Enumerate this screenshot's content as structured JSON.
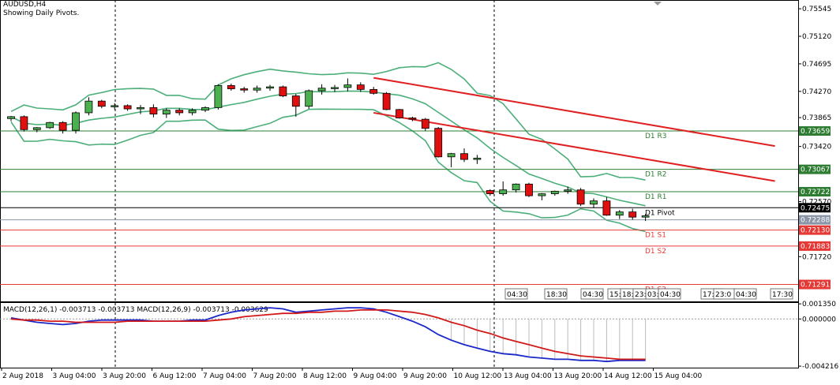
{
  "header": {
    "symbol": "AUDUSD,H4",
    "subtitle": "Showing Daily Pivots."
  },
  "chart_data": {
    "type": "candlestick",
    "symbol": "AUDUSD",
    "timeframe": "H4",
    "ylim": [
      0.7103,
      0.7568
    ],
    "y_ticks": [
      "0.75545",
      "0.75120",
      "0.74695",
      "0.74270",
      "0.73865",
      "0.73420",
      "0.72570",
      "0.71720"
    ],
    "x_ticks": [
      "2 Aug 2018",
      "3 Aug 04:00",
      "3 Aug 20:00",
      "6 Aug 12:00",
      "7 Aug 04:00",
      "7 Aug 20:00",
      "8 Aug 12:00",
      "9 Aug 04:00",
      "9 Aug 20:00",
      "10 Aug 12:00",
      "13 Aug 04:00",
      "13 Aug 20:00",
      "14 Aug 12:00",
      "15 Aug 04:00"
    ],
    "candles": [
      [
        0.7385,
        0.7389,
        0.7381,
        0.7388
      ],
      [
        0.7388,
        0.739,
        0.7365,
        0.7368
      ],
      [
        0.7368,
        0.7372,
        0.7364,
        0.7371
      ],
      [
        0.7371,
        0.738,
        0.7369,
        0.7379
      ],
      [
        0.7379,
        0.7381,
        0.7362,
        0.7367
      ],
      [
        0.7367,
        0.7396,
        0.7362,
        0.7394
      ],
      [
        0.7394,
        0.7418,
        0.739,
        0.7412
      ],
      [
        0.7412,
        0.7414,
        0.7401,
        0.7404
      ],
      [
        0.7404,
        0.7409,
        0.7399,
        0.7405
      ],
      [
        0.7405,
        0.7407,
        0.7397,
        0.74
      ],
      [
        0.74,
        0.7406,
        0.7392,
        0.7402
      ],
      [
        0.7402,
        0.7407,
        0.7387,
        0.7392
      ],
      [
        0.7392,
        0.7401,
        0.7386,
        0.7398
      ],
      [
        0.7398,
        0.7401,
        0.739,
        0.7394
      ],
      [
        0.7394,
        0.7401,
        0.739,
        0.7398
      ],
      [
        0.7398,
        0.7404,
        0.7395,
        0.7402
      ],
      [
        0.7402,
        0.7438,
        0.7399,
        0.7436
      ],
      [
        0.7436,
        0.7439,
        0.7428,
        0.7431
      ],
      [
        0.7431,
        0.7434,
        0.7425,
        0.7429
      ],
      [
        0.7429,
        0.7436,
        0.7425,
        0.7432
      ],
      [
        0.7432,
        0.7437,
        0.7428,
        0.7434
      ],
      [
        0.7434,
        0.7436,
        0.7418,
        0.742
      ],
      [
        0.742,
        0.7423,
        0.7388,
        0.7404
      ],
      [
        0.7404,
        0.743,
        0.74,
        0.7428
      ],
      [
        0.7428,
        0.7438,
        0.7422,
        0.7432
      ],
      [
        0.7432,
        0.7437,
        0.7426,
        0.7433
      ],
      [
        0.7433,
        0.7447,
        0.7427,
        0.7437
      ],
      [
        0.7437,
        0.7441,
        0.7426,
        0.743
      ],
      [
        0.743,
        0.7434,
        0.7422,
        0.7424
      ],
      [
        0.7424,
        0.7426,
        0.7398,
        0.7399
      ],
      [
        0.7399,
        0.74,
        0.7385,
        0.7386
      ],
      [
        0.7386,
        0.7388,
        0.7381,
        0.7384
      ],
      [
        0.7384,
        0.7386,
        0.7366,
        0.737
      ],
      [
        0.737,
        0.7372,
        0.7325,
        0.7326
      ],
      [
        0.7326,
        0.7332,
        0.731,
        0.7331
      ],
      [
        0.7331,
        0.7339,
        0.7318,
        0.7322
      ],
      [
        0.7322,
        0.7329,
        0.7315,
        0.7324
      ],
      [
        0.7274,
        0.7276,
        0.7266,
        0.7269
      ],
      [
        0.7269,
        0.7288,
        0.7266,
        0.7275
      ],
      [
        0.7275,
        0.7285,
        0.7271,
        0.7284
      ],
      [
        0.7284,
        0.7286,
        0.7264,
        0.7266
      ],
      [
        0.7266,
        0.727,
        0.7259,
        0.7269
      ],
      [
        0.7269,
        0.7274,
        0.7266,
        0.7273
      ],
      [
        0.7273,
        0.728,
        0.7269,
        0.7275
      ],
      [
        0.7275,
        0.7278,
        0.725,
        0.7253
      ],
      [
        0.7253,
        0.7262,
        0.7247,
        0.7258
      ],
      [
        0.7258,
        0.7264,
        0.7235,
        0.7236
      ],
      [
        0.7236,
        0.7244,
        0.723,
        0.7241
      ],
      [
        0.7241,
        0.7246,
        0.7229,
        0.7233
      ],
      [
        0.7233,
        0.7238,
        0.7227,
        0.7235
      ]
    ],
    "price_labels": [
      {
        "value": 0.73659,
        "text": "0.73659",
        "color": "#2e7d32",
        "pivot": "D1 R3"
      },
      {
        "value": 0.73067,
        "text": "0.73067",
        "color": "#2e7d32",
        "pivot": "D1 R2"
      },
      {
        "value": 0.72722,
        "text": "0.72722",
        "color": "#2e7d32",
        "pivot": "D1 R1"
      },
      {
        "value": 0.72475,
        "text": "0.72475",
        "color": "#000000",
        "pivot": "D1 Pivot"
      },
      {
        "value": 0.72288,
        "text": "0.72288",
        "color": "#8a96a8",
        "pivot": ""
      },
      {
        "value": 0.7213,
        "text": "0.72130",
        "color": "#e53935",
        "pivot": "D1 S1"
      },
      {
        "value": 0.71883,
        "text": "0.71883",
        "color": "#e53935",
        "pivot": "D1 S2"
      },
      {
        "value": 0.71291,
        "text": "0.71291",
        "color": "#e53935",
        "pivot": "D1 S3"
      }
    ],
    "time_labels": [
      "04:30",
      "18:30",
      "04:30",
      "15:",
      "18:",
      "23:",
      "03:",
      "04:30",
      "17:30",
      "23:0",
      "04:30",
      "17:30"
    ],
    "macd": {
      "label": "MACD(12,26,1) -0.003713 -0.003713 MACD(12,26,9) -0.003713 -0.003629",
      "y_ticks": [
        "0.001350",
        "0.000000",
        "-0.004216"
      ],
      "ylim": [
        -0.00435,
        0.0015
      ],
      "main": [
        0.0001,
        -0.0001,
        -0.0003,
        -0.0004,
        -0.0005,
        -0.0004,
        -0.0002,
        -0.0001,
        -0.0001,
        -0.0001,
        -0.0001,
        -0.0002,
        -0.0002,
        -0.0002,
        -0.0001,
        -0.0001,
        0.0003,
        0.0006,
        0.0008,
        0.0009,
        0.001,
        0.0009,
        0.0006,
        0.0007,
        0.0008,
        0.0009,
        0.001,
        0.001,
        0.0009,
        0.0006,
        0.0002,
        -0.0002,
        -0.0007,
        -0.0014,
        -0.0019,
        -0.0023,
        -0.0026,
        -0.0029,
        -0.0031,
        -0.0032,
        -0.0034,
        -0.0035,
        -0.0036,
        -0.0036,
        -0.0037,
        -0.0037,
        -0.0038,
        -0.0037,
        -0.0037,
        -0.0037
      ],
      "signal": [
        0.0,
        -0.0001,
        -0.0001,
        -0.0002,
        -0.0002,
        -0.0003,
        -0.0003,
        -0.0003,
        -0.0003,
        -0.0002,
        -0.0002,
        -0.0002,
        -0.0002,
        -0.0002,
        -0.0002,
        -0.0002,
        -0.0001,
        0.0,
        0.0002,
        0.0003,
        0.0004,
        0.0005,
        0.0005,
        0.0006,
        0.0006,
        0.0007,
        0.0007,
        0.0008,
        0.0008,
        0.0008,
        0.0007,
        0.0006,
        0.0004,
        0.0001,
        -0.0003,
        -0.0006,
        -0.001,
        -0.0013,
        -0.0017,
        -0.002,
        -0.0023,
        -0.0026,
        -0.0029,
        -0.0031,
        -0.0033,
        -0.0034,
        -0.0035,
        -0.0036,
        -0.0036,
        -0.0036
      ]
    }
  }
}
